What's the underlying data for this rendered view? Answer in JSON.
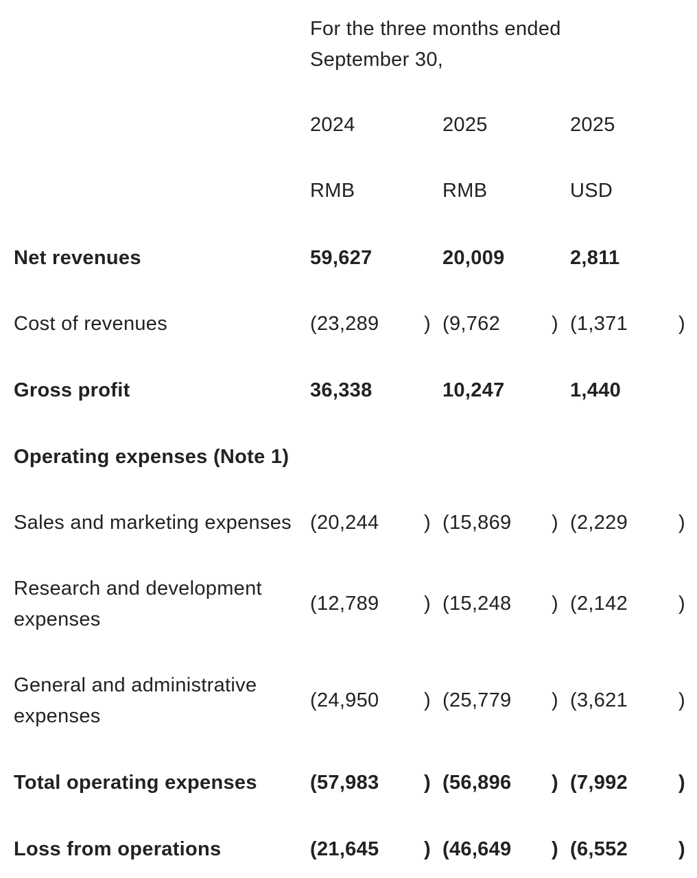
{
  "header": {
    "period_line1": "For the three months ended",
    "period_line2": "September 30,",
    "years": [
      "2024",
      "2025",
      "2025"
    ],
    "currencies": [
      "RMB",
      "RMB",
      "USD"
    ]
  },
  "rows": [
    {
      "label": "Net revenues",
      "values": [
        "59,627",
        "20,009",
        "2,811"
      ],
      "bold": true,
      "paren": false
    },
    {
      "label": "Cost of revenues",
      "values": [
        "(23,289",
        "(9,762",
        "(1,371"
      ],
      "bold": false,
      "paren": true
    },
    {
      "label": "Gross profit",
      "values": [
        "36,338",
        "10,247",
        "1,440"
      ],
      "bold": true,
      "paren": false
    },
    {
      "label": "Operating expenses (Note 1)",
      "values": [
        "",
        "",
        ""
      ],
      "bold": true,
      "paren": false
    },
    {
      "label": "Sales and marketing expenses",
      "values": [
        "(20,244",
        "(15,869",
        "(2,229"
      ],
      "bold": false,
      "paren": true
    },
    {
      "label": "Research and development",
      "label2": "expenses",
      "values": [
        "(12,789",
        "(15,248",
        "(2,142"
      ],
      "bold": false,
      "paren": true
    },
    {
      "label": "General and administrative",
      "label2": "expenses",
      "values": [
        "(24,950",
        "(25,779",
        "(3,621"
      ],
      "bold": false,
      "paren": true
    },
    {
      "label": "Total operating expenses",
      "values": [
        "(57,983",
        "(56,896",
        "(7,992"
      ],
      "bold": true,
      "paren": true
    },
    {
      "label": "Loss from operations",
      "values": [
        "(21,645",
        "(46,649",
        "(6,552"
      ],
      "bold": true,
      "paren": true
    }
  ],
  "closing_paren": ")"
}
